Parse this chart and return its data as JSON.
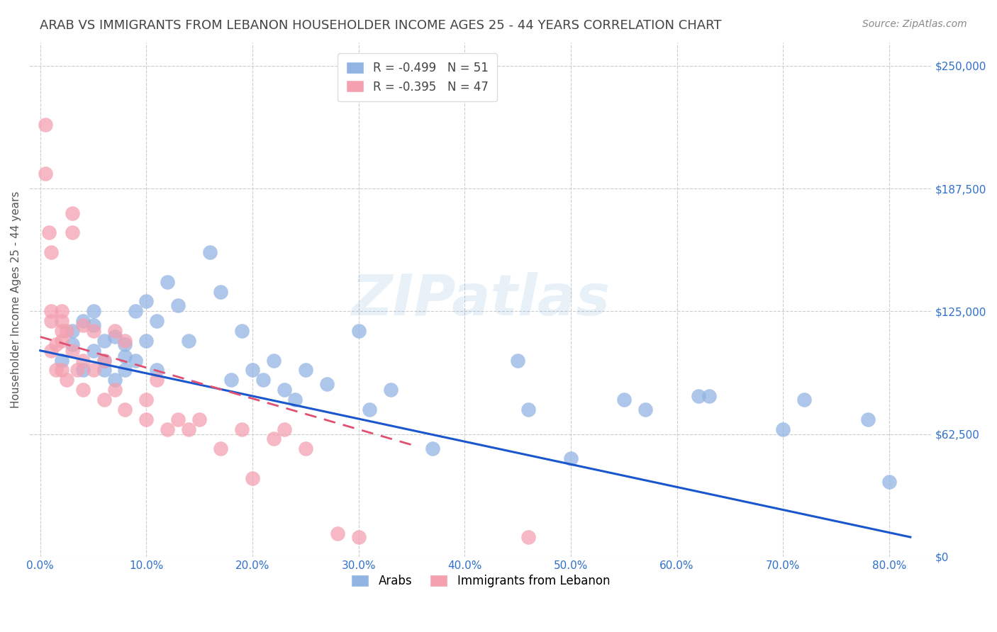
{
  "title": "ARAB VS IMMIGRANTS FROM LEBANON HOUSEHOLDER INCOME AGES 25 - 44 YEARS CORRELATION CHART",
  "source": "Source: ZipAtlas.com",
  "xlabel_ticks": [
    "0.0%",
    "10.0%",
    "20.0%",
    "30.0%",
    "40.0%",
    "50.0%",
    "60.0%",
    "70.0%",
    "80.0%"
  ],
  "xlabel_vals": [
    0.0,
    0.1,
    0.2,
    0.3,
    0.4,
    0.5,
    0.6,
    0.7,
    0.8
  ],
  "ylabel_ticks": [
    "$0",
    "$62,500",
    "$125,000",
    "$187,500",
    "$250,000"
  ],
  "ylabel_vals": [
    0,
    62500,
    125000,
    187500,
    250000
  ],
  "ylabel_label": "Householder Income Ages 25 - 44 years",
  "ylim": [
    0,
    262000
  ],
  "xlim": [
    -0.01,
    0.84
  ],
  "legend_blue_label": "R = -0.499   N = 51",
  "legend_pink_label": "R = -0.395   N = 47",
  "legend_bottom_blue": "Arabs",
  "legend_bottom_pink": "Immigrants from Lebanon",
  "watermark": "ZIPatlas",
  "blue_color": "#92B4E3",
  "pink_color": "#F4A0B0",
  "blue_line_color": "#1a56cc",
  "pink_line_color": "#e05070",
  "title_color": "#444444",
  "source_color": "#888888",
  "tick_color": "#3070cc",
  "grid_color": "#cccccc",
  "blue_scatter_x": [
    0.02,
    0.03,
    0.03,
    0.04,
    0.04,
    0.05,
    0.05,
    0.05,
    0.06,
    0.06,
    0.06,
    0.07,
    0.07,
    0.08,
    0.08,
    0.08,
    0.09,
    0.09,
    0.1,
    0.1,
    0.11,
    0.11,
    0.12,
    0.13,
    0.14,
    0.16,
    0.17,
    0.18,
    0.19,
    0.2,
    0.21,
    0.22,
    0.23,
    0.24,
    0.25,
    0.27,
    0.3,
    0.31,
    0.33,
    0.37,
    0.45,
    0.46,
    0.5,
    0.55,
    0.57,
    0.62,
    0.63,
    0.7,
    0.72,
    0.78,
    0.8
  ],
  "blue_scatter_y": [
    100000,
    115000,
    108000,
    95000,
    120000,
    125000,
    118000,
    105000,
    110000,
    100000,
    95000,
    112000,
    90000,
    108000,
    102000,
    95000,
    125000,
    100000,
    130000,
    110000,
    120000,
    95000,
    140000,
    128000,
    110000,
    155000,
    135000,
    90000,
    115000,
    95000,
    90000,
    100000,
    85000,
    80000,
    95000,
    88000,
    115000,
    75000,
    85000,
    55000,
    100000,
    75000,
    50000,
    80000,
    75000,
    82000,
    82000,
    65000,
    80000,
    70000,
    38000
  ],
  "pink_scatter_x": [
    0.005,
    0.005,
    0.008,
    0.01,
    0.01,
    0.01,
    0.01,
    0.015,
    0.015,
    0.02,
    0.02,
    0.02,
    0.02,
    0.02,
    0.025,
    0.025,
    0.03,
    0.03,
    0.03,
    0.035,
    0.04,
    0.04,
    0.04,
    0.05,
    0.05,
    0.06,
    0.06,
    0.07,
    0.07,
    0.08,
    0.08,
    0.1,
    0.1,
    0.11,
    0.12,
    0.13,
    0.14,
    0.15,
    0.17,
    0.19,
    0.2,
    0.22,
    0.23,
    0.25,
    0.28,
    0.3,
    0.46
  ],
  "pink_scatter_y": [
    220000,
    195000,
    165000,
    155000,
    125000,
    120000,
    105000,
    108000,
    95000,
    125000,
    120000,
    115000,
    110000,
    95000,
    115000,
    90000,
    175000,
    165000,
    105000,
    95000,
    118000,
    100000,
    85000,
    115000,
    95000,
    100000,
    80000,
    115000,
    85000,
    110000,
    75000,
    80000,
    70000,
    90000,
    65000,
    70000,
    65000,
    70000,
    55000,
    65000,
    40000,
    60000,
    65000,
    55000,
    12000,
    10000,
    10000
  ],
  "blue_trend_x": [
    0.0,
    0.82
  ],
  "blue_trend_y": [
    105000,
    10000
  ],
  "pink_trend_x": [
    0.0,
    0.35
  ],
  "pink_trend_y": [
    112000,
    57000
  ]
}
